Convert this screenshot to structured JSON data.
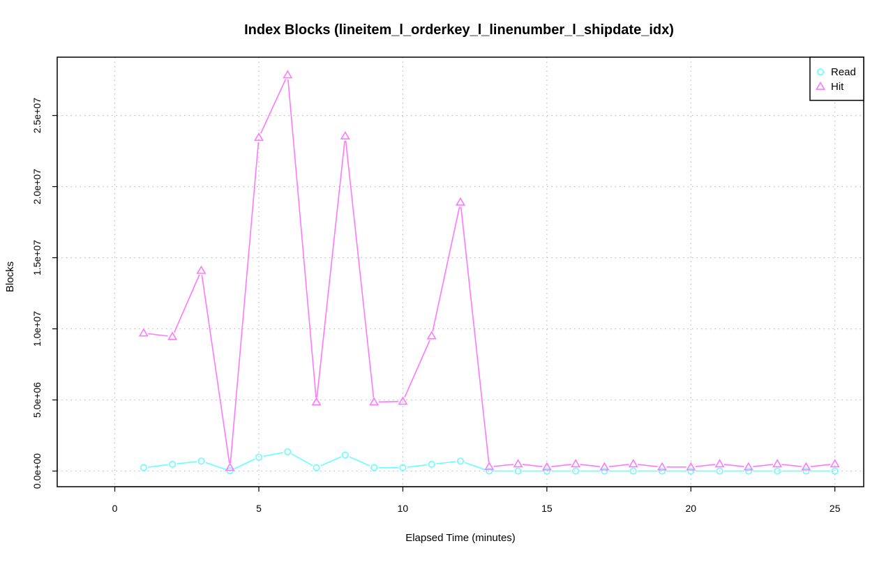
{
  "chart_data": {
    "type": "line",
    "title": "Index Blocks (lineitem_l_orderkey_l_linenumber_l_shipdate_idx)",
    "xlabel": "Elapsed Time (minutes)",
    "ylabel": "Blocks",
    "xlim": [
      -2,
      26
    ],
    "ylim": [
      -1100000,
      29100000
    ],
    "x_ticks": [
      0,
      5,
      10,
      15,
      20,
      25
    ],
    "x_tick_labels": [
      "0",
      "5",
      "10",
      "15",
      "20",
      "25"
    ],
    "y_ticks": [
      0,
      5000000,
      10000000,
      15000000,
      20000000,
      25000000
    ],
    "y_tick_labels": [
      "0.0e+00",
      "5.0e+06",
      "1.0e+07",
      "1.5e+07",
      "2.0e+07",
      "2.5e+07"
    ],
    "grid": true,
    "legend_position": "top-right",
    "x": [
      1,
      2,
      3,
      4,
      5,
      6,
      7,
      8,
      9,
      10,
      11,
      12,
      13,
      14,
      15,
      16,
      17,
      18,
      19,
      20,
      21,
      22,
      23,
      24,
      25
    ],
    "series": [
      {
        "name": "Read",
        "color": "#66ffff",
        "marker": "circle",
        "values": [
          240000,
          480000,
          700000,
          20000,
          980000,
          1360000,
          240000,
          1130000,
          240000,
          240000,
          480000,
          700000,
          0,
          0,
          0,
          0,
          0,
          0,
          0,
          0,
          0,
          0,
          0,
          0,
          0
        ]
      },
      {
        "name": "Hit",
        "color": "#ff77ff",
        "marker": "triangle",
        "values": [
          9700000,
          9450000,
          14100000,
          250000,
          23450000,
          27850000,
          4850000,
          23550000,
          4850000,
          4900000,
          9500000,
          18900000,
          300000,
          500000,
          280000,
          500000,
          280000,
          500000,
          280000,
          280000,
          500000,
          280000,
          500000,
          280000,
          500000
        ]
      }
    ]
  }
}
